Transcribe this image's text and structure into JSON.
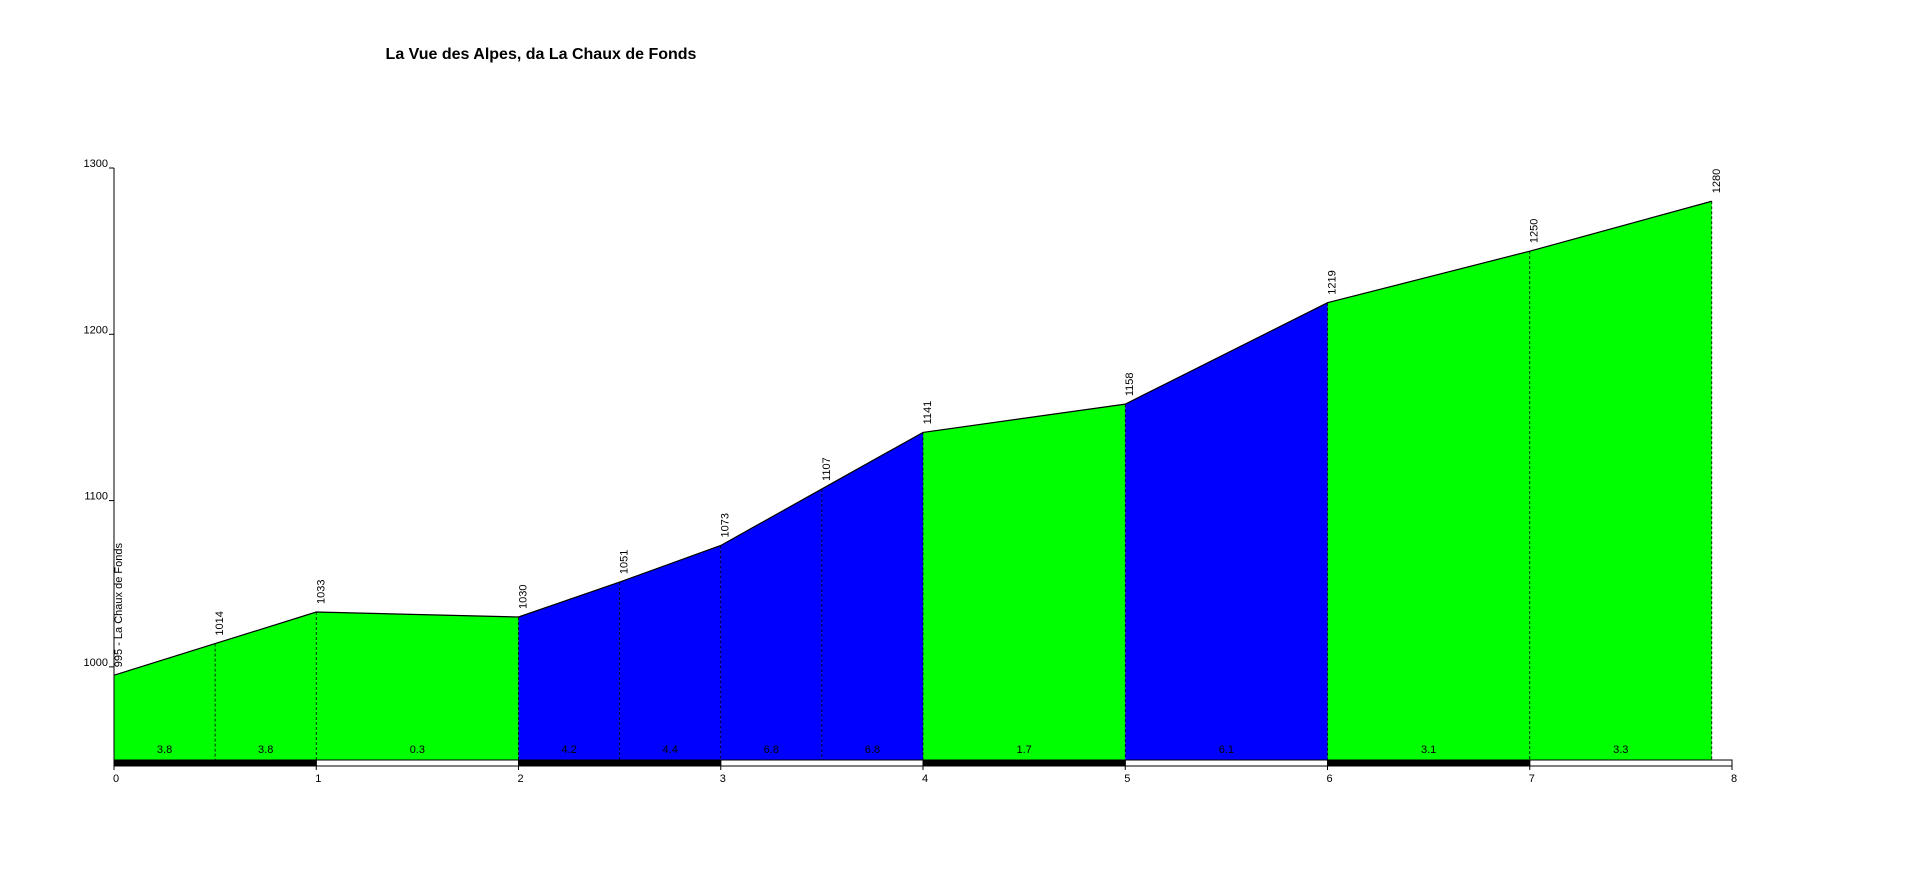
{
  "chart_data": {
    "type": "area",
    "title": "La Vue des  Alpes, da La Chaux de Fonds",
    "x": [
      0,
      0.5,
      1,
      2,
      2.5,
      3,
      3.5,
      4,
      5,
      6,
      7,
      7.9
    ],
    "values": [
      995,
      1014,
      1033,
      1030,
      1051,
      1073,
      1107,
      1141,
      1158,
      1219,
      1250,
      1280
    ],
    "value_labels": [
      "995 - La Chaux de Fonds",
      "1014",
      "1033",
      "1030",
      "1051",
      "1073",
      "1107",
      "1141",
      "1158",
      "1219",
      "1250",
      "1280"
    ],
    "gradients": [
      3.8,
      3.8,
      0.3,
      4.2,
      4.4,
      6.8,
      6.8,
      1.7,
      6.1,
      3.1,
      3.3
    ],
    "segment_colors": [
      "#00ff00",
      "#00ff00",
      "#00ff00",
      "#0000ff",
      "#0000ff",
      "#0000ff",
      "#0000ff",
      "#00ff00",
      "#0000ff",
      "#00ff00",
      "#00ff00"
    ],
    "xlim": [
      0,
      8
    ],
    "ylim": [
      944,
      1300
    ],
    "xticks": [
      0,
      1,
      2,
      3,
      4,
      5,
      6,
      7,
      8
    ],
    "yticks": [
      1000,
      1100,
      1200,
      1300
    ]
  }
}
